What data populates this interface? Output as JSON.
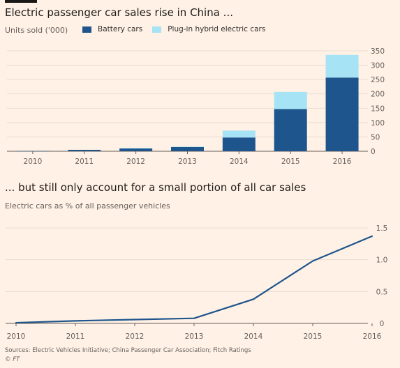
{
  "colors": {
    "background": "#fff1e5",
    "battery": "#1e558c",
    "phev": "#a6e3f5",
    "line": "#1e558c",
    "grid": "#e2d6cb",
    "axis_text": "#66605c"
  },
  "top": {
    "title": "Electric passenger car sales rise in China ...",
    "subtitle": "Units sold ('000)"
  },
  "bottom": {
    "title": "... but still only account for a small portion of all car sales",
    "subtitle": "Electric cars as % of all passenger vehicles"
  },
  "footer": {
    "sources": "Sources: Electric Vehicles Initiative; China Passenger Car Association; Fitch Ratings",
    "copyright": "© FT"
  },
  "chart_data": [
    {
      "type": "bar",
      "stacked": true,
      "title": "Electric passenger car sales rise in China ...",
      "ylabel": "Units sold ('000)",
      "categories": [
        "2010",
        "2011",
        "2012",
        "2013",
        "2014",
        "2015",
        "2016"
      ],
      "series": [
        {
          "name": "Battery cars",
          "color": "#1e558c",
          "values": [
            1,
            5,
            10,
            15,
            48,
            147,
            257
          ]
        },
        {
          "name": "Plug-in hybrid electric cars",
          "color": "#a6e3f5",
          "values": [
            0,
            0,
            1,
            1,
            24,
            60,
            79
          ]
        }
      ],
      "ylim": [
        0,
        350
      ],
      "yticks": [
        0,
        50,
        100,
        150,
        200,
        250,
        300,
        350
      ],
      "grid": true,
      "legend": "top-left"
    },
    {
      "type": "line",
      "title": "... but still only account for a small portion of all car sales",
      "ylabel": "Electric cars as % of all passenger vehicles",
      "x": [
        "2010",
        "2011",
        "2012",
        "2013",
        "2014",
        "2015",
        "2016"
      ],
      "series": [
        {
          "color": "#1e558c",
          "values": [
            0.01,
            0.04,
            0.06,
            0.08,
            0.38,
            0.98,
            1.37
          ]
        }
      ],
      "ylim": [
        0,
        1.5
      ],
      "yticks": [
        "0",
        "0.5",
        "1.0",
        "1.5"
      ],
      "grid": true
    }
  ]
}
